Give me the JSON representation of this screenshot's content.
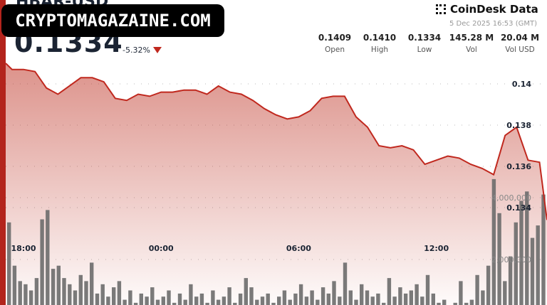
{
  "header": {
    "pair": "HBAR-USD",
    "price": "0.1334",
    "change": "-5.32%",
    "change_direction": "down",
    "watermark": "CRYPTOMAGAZAINE.COM",
    "brand": "CoinDesk Data",
    "timestamp": "5 Dec 2025 16:53 (GMT)"
  },
  "stats": [
    {
      "value": "0.1409",
      "label": "Open"
    },
    {
      "value": "0.1410",
      "label": "High"
    },
    {
      "value": "0.1334",
      "label": "Low"
    },
    {
      "value": "145.28 M",
      "label": "Vol"
    },
    {
      "value": "20.04 M",
      "label": "Vol USD"
    }
  ],
  "colors": {
    "line": "#c0281e",
    "fill": "#c0392b",
    "volume": "#6b6b6b",
    "accent": "#b3241c"
  },
  "chart_data": {
    "type": "line",
    "grid": true,
    "price_axis": {
      "ticks": [
        "0.14",
        "0.138",
        "0.136",
        "0.134"
      ],
      "tick_values": [
        0.14,
        0.138,
        0.136,
        0.134
      ],
      "ylim": [
        0.1334,
        0.1413
      ],
      "position": "right"
    },
    "volume_axis": {
      "ticks": [
        "4,000,000",
        "2,000,000"
      ],
      "tick_values": [
        4000000,
        2000000
      ]
    },
    "x_ticks": [
      "18:00",
      "00:00",
      "06:00",
      "12:00"
    ],
    "price_series": {
      "x": [
        "17:15",
        "17:30",
        "18:00",
        "18:30",
        "19:00",
        "19:30",
        "20:00",
        "20:30",
        "21:00",
        "21:30",
        "22:00",
        "22:30",
        "23:00",
        "23:30",
        "00:00",
        "00:30",
        "01:00",
        "01:30",
        "02:00",
        "02:30",
        "03:00",
        "03:30",
        "04:00",
        "04:30",
        "05:00",
        "05:30",
        "06:00",
        "06:30",
        "07:00",
        "07:30",
        "08:00",
        "08:30",
        "09:00",
        "09:30",
        "10:00",
        "10:30",
        "11:00",
        "11:30",
        "12:00",
        "12:30",
        "13:00",
        "13:30",
        "14:00",
        "14:30",
        "15:00",
        "15:30",
        "16:00",
        "16:30",
        "16:53"
      ],
      "values": [
        0.141,
        0.1407,
        0.1407,
        0.1406,
        0.1398,
        0.1395,
        0.1399,
        0.1403,
        0.1403,
        0.1401,
        0.1393,
        0.1392,
        0.1395,
        0.1394,
        0.1396,
        0.1396,
        0.1397,
        0.1397,
        0.1395,
        0.1399,
        0.1396,
        0.1395,
        0.1392,
        0.1388,
        0.1385,
        0.1383,
        0.1384,
        0.1387,
        0.1393,
        0.1394,
        0.1394,
        0.1384,
        0.1379,
        0.137,
        0.1369,
        0.137,
        0.1368,
        0.1361,
        0.1363,
        0.1365,
        0.1364,
        0.1361,
        0.1359,
        0.1356,
        0.1375,
        0.1379,
        0.1363,
        0.1362,
        0.1334
      ]
    },
    "volume_series": {
      "values": [
        3200000,
        1800000,
        1300000,
        1200000,
        1000000,
        1400000,
        3300000,
        3600000,
        1700000,
        1800000,
        1400000,
        1200000,
        1000000,
        1500000,
        1300000,
        1900000,
        900000,
        1200000,
        800000,
        1100000,
        1300000,
        700000,
        1000000,
        600000,
        900000,
        800000,
        1100000,
        700000,
        800000,
        1000000,
        600000,
        900000,
        700000,
        1200000,
        800000,
        900000,
        600000,
        1000000,
        700000,
        800000,
        1100000,
        600000,
        900000,
        1400000,
        1100000,
        700000,
        800000,
        900000,
        600000,
        800000,
        1000000,
        700000,
        900000,
        1200000,
        800000,
        1000000,
        700000,
        1100000,
        900000,
        1300000,
        800000,
        1900000,
        1000000,
        700000,
        1200000,
        1000000,
        800000,
        900000,
        600000,
        1400000,
        800000,
        1100000,
        900000,
        1000000,
        1200000,
        800000,
        1500000,
        900000,
        600000,
        700000,
        500000,
        600000,
        1300000,
        600000,
        700000,
        1500000,
        1000000,
        1800000,
        4600000,
        3500000,
        1300000,
        2100000,
        3200000,
        3900000,
        4200000,
        2700000,
        3100000,
        4100000
      ]
    }
  }
}
